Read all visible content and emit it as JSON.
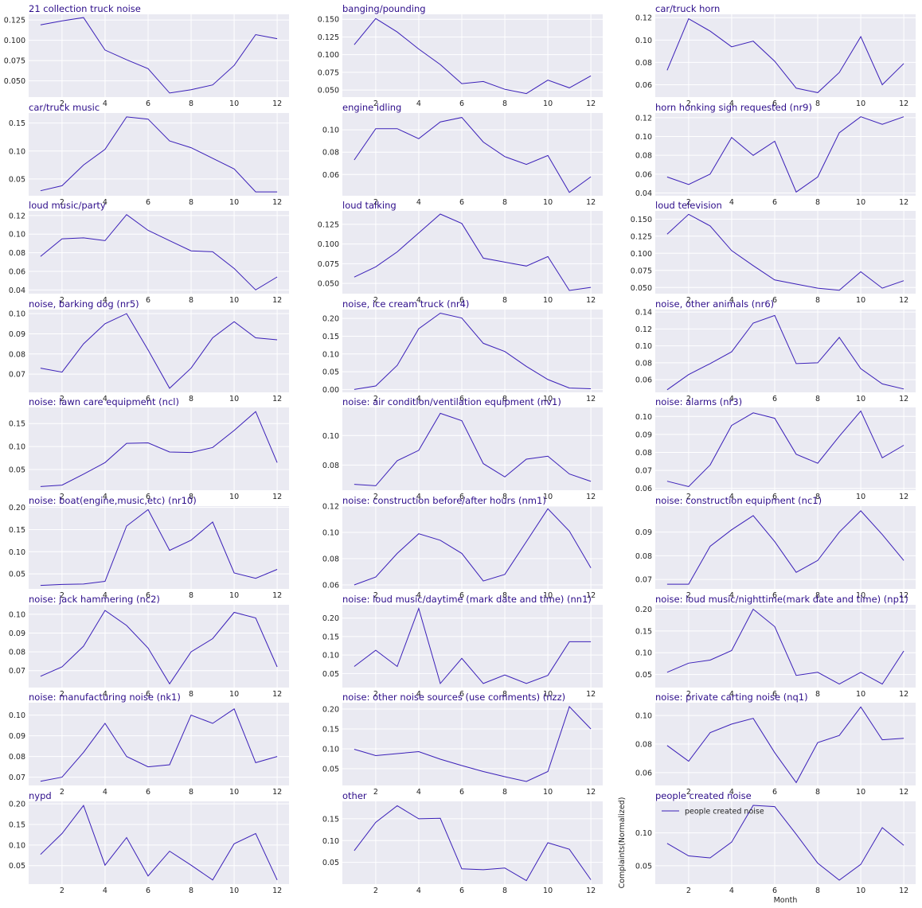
{
  "style": {
    "line_color": "#3a1fb8",
    "title_color": "#2d0d8a",
    "plot_background": "#eaeaf2",
    "grid_color": "#ffffff"
  },
  "chart_data": [
    {
      "type": "line",
      "title": "21 collection truck noise",
      "x": [
        1,
        2,
        3,
        4,
        5,
        6,
        7,
        8,
        9,
        10,
        11,
        12
      ],
      "values": [
        0.119,
        0.124,
        0.128,
        0.088,
        0.076,
        0.065,
        0.035,
        0.039,
        0.045,
        0.069,
        0.107,
        0.102
      ],
      "yticks": [
        "0.050",
        "0.075",
        "0.100",
        "0.125"
      ],
      "ylim": [
        0.03,
        0.132
      ],
      "xticks": [
        2,
        4,
        6,
        8,
        10,
        12
      ]
    },
    {
      "type": "line",
      "title": "banging/pounding",
      "x": [
        1,
        2,
        3,
        4,
        5,
        6,
        7,
        8,
        9,
        10,
        11,
        12
      ],
      "values": [
        0.114,
        0.151,
        0.132,
        0.108,
        0.086,
        0.059,
        0.062,
        0.051,
        0.045,
        0.064,
        0.053,
        0.07
      ],
      "yticks": [
        "0.050",
        "0.075",
        "0.100",
        "0.125",
        "0.150"
      ],
      "ylim": [
        0.04,
        0.157
      ],
      "xticks": [
        2,
        4,
        6,
        8,
        10,
        12
      ]
    },
    {
      "type": "line",
      "title": "car/truck horn",
      "x": [
        1,
        2,
        3,
        4,
        5,
        6,
        7,
        8,
        9,
        10,
        11,
        12
      ],
      "values": [
        0.073,
        0.119,
        0.108,
        0.094,
        0.099,
        0.081,
        0.057,
        0.053,
        0.071,
        0.103,
        0.06,
        0.079
      ],
      "yticks": [
        "0.06",
        "0.08",
        "0.10",
        "0.12"
      ],
      "ylim": [
        0.049,
        0.123
      ],
      "xticks": [
        2,
        4,
        6,
        8,
        10,
        12
      ]
    },
    {
      "type": "line",
      "title": "car/truck music",
      "x": [
        1,
        2,
        3,
        4,
        5,
        6,
        7,
        8,
        9,
        10,
        11,
        12
      ],
      "values": [
        0.029,
        0.038,
        0.075,
        0.103,
        0.161,
        0.157,
        0.118,
        0.106,
        0.087,
        0.068,
        0.027,
        0.027
      ],
      "yticks": [
        "0.05",
        "0.10",
        "0.15"
      ],
      "ylim": [
        0.02,
        0.168
      ],
      "xticks": [
        2,
        4,
        6,
        8,
        10,
        12
      ]
    },
    {
      "type": "line",
      "title": "engine idling",
      "x": [
        1,
        2,
        3,
        4,
        5,
        6,
        7,
        8,
        9,
        10,
        11,
        12
      ],
      "values": [
        0.073,
        0.101,
        0.101,
        0.092,
        0.107,
        0.111,
        0.089,
        0.076,
        0.069,
        0.077,
        0.044,
        0.058
      ],
      "yticks": [
        "0.06",
        "0.08",
        "0.10"
      ],
      "ylim": [
        0.041,
        0.115
      ],
      "xticks": [
        2,
        4,
        6,
        8,
        10,
        12
      ]
    },
    {
      "type": "line",
      "title": "horn honking sign requested (nr9)",
      "x": [
        1,
        2,
        3,
        4,
        5,
        6,
        7,
        8,
        9,
        10,
        11,
        12
      ],
      "values": [
        0.057,
        0.049,
        0.06,
        0.099,
        0.08,
        0.095,
        0.041,
        0.057,
        0.104,
        0.121,
        0.113,
        0.121
      ],
      "yticks": [
        "0.04",
        "0.06",
        "0.08",
        "0.10",
        "0.12"
      ],
      "ylim": [
        0.037,
        0.125
      ],
      "xticks": [
        2,
        4,
        6,
        8,
        10,
        12
      ]
    },
    {
      "type": "line",
      "title": "loud music/party",
      "x": [
        1,
        2,
        3,
        4,
        5,
        6,
        7,
        8,
        9,
        10,
        11,
        12
      ],
      "values": [
        0.076,
        0.095,
        0.096,
        0.093,
        0.121,
        0.104,
        0.093,
        0.082,
        0.081,
        0.063,
        0.04,
        0.054
      ],
      "yticks": [
        "0.04",
        "0.06",
        "0.08",
        "0.10",
        "0.12"
      ],
      "ylim": [
        0.036,
        0.125
      ],
      "xticks": [
        2,
        4,
        6,
        8,
        10,
        12
      ]
    },
    {
      "type": "line",
      "title": "loud talking",
      "x": [
        1,
        2,
        3,
        4,
        5,
        6,
        7,
        8,
        9,
        10,
        11,
        12
      ],
      "values": [
        0.058,
        0.071,
        0.09,
        0.114,
        0.138,
        0.126,
        0.082,
        0.077,
        0.072,
        0.084,
        0.041,
        0.045
      ],
      "yticks": [
        "0.050",
        "0.075",
        "0.100",
        "0.125"
      ],
      "ylim": [
        0.037,
        0.142
      ],
      "xticks": [
        2,
        4,
        6,
        8,
        10,
        12
      ]
    },
    {
      "type": "line",
      "title": "loud television",
      "x": [
        1,
        2,
        3,
        4,
        5,
        6,
        7,
        8,
        9,
        10,
        11,
        12
      ],
      "values": [
        0.128,
        0.157,
        0.14,
        0.104,
        0.082,
        0.061,
        0.055,
        0.049,
        0.046,
        0.073,
        0.049,
        0.06
      ],
      "yticks": [
        "0.050",
        "0.075",
        "0.100",
        "0.125",
        "0.150"
      ],
      "ylim": [
        0.041,
        0.162
      ],
      "xticks": [
        2,
        4,
        6,
        8,
        10,
        12
      ]
    },
    {
      "type": "line",
      "title": "noise, barking dog (nr5)",
      "x": [
        1,
        2,
        3,
        4,
        5,
        6,
        7,
        8,
        9,
        10,
        11,
        12
      ],
      "values": [
        0.073,
        0.071,
        0.085,
        0.095,
        0.1,
        0.082,
        0.063,
        0.073,
        0.088,
        0.096,
        0.088,
        0.087
      ],
      "yticks": [
        "0.07",
        "0.08",
        "0.09",
        "0.10"
      ],
      "ylim": [
        0.061,
        0.102
      ],
      "xticks": [
        2,
        4,
        6,
        8,
        10,
        12
      ]
    },
    {
      "type": "line",
      "title": "noise, ice cream truck (nr4)",
      "x": [
        1,
        2,
        3,
        4,
        5,
        6,
        7,
        8,
        9,
        10,
        11,
        12
      ],
      "values": [
        0.0,
        0.01,
        0.068,
        0.171,
        0.215,
        0.201,
        0.13,
        0.107,
        0.065,
        0.028,
        0.004,
        0.002
      ],
      "yticks": [
        "0.00",
        "0.05",
        "0.10",
        "0.15",
        "0.20"
      ],
      "ylim": [
        -0.008,
        0.225
      ],
      "xticks": [
        2,
        4,
        6,
        8,
        10,
        12
      ]
    },
    {
      "type": "line",
      "title": "noise, other animals (nr6)",
      "x": [
        1,
        2,
        3,
        4,
        5,
        6,
        7,
        8,
        9,
        10,
        11,
        12
      ],
      "values": [
        0.048,
        0.066,
        0.079,
        0.093,
        0.127,
        0.136,
        0.079,
        0.08,
        0.11,
        0.073,
        0.055,
        0.049
      ],
      "yticks": [
        "0.06",
        "0.08",
        "0.10",
        "0.12",
        "0.14"
      ],
      "ylim": [
        0.045,
        0.143
      ],
      "xticks": [
        2,
        4,
        6,
        8,
        10,
        12
      ]
    },
    {
      "type": "line",
      "title": "noise:  lawn care equipment (ncl)",
      "x": [
        1,
        2,
        3,
        4,
        5,
        6,
        7,
        8,
        9,
        10,
        11,
        12
      ],
      "values": [
        0.013,
        0.016,
        0.04,
        0.065,
        0.107,
        0.108,
        0.088,
        0.087,
        0.098,
        0.135,
        0.176,
        0.065
      ],
      "yticks": [
        "0.05",
        "0.10",
        "0.15"
      ],
      "ylim": [
        0.005,
        0.185
      ],
      "xticks": [
        2,
        4,
        6,
        8,
        10,
        12
      ]
    },
    {
      "type": "line",
      "title": "noise: air condition/ventilation equipment (nv1)",
      "x": [
        1,
        2,
        3,
        4,
        5,
        6,
        7,
        8,
        9,
        10,
        11,
        12
      ],
      "values": [
        0.067,
        0.066,
        0.083,
        0.09,
        0.115,
        0.11,
        0.081,
        0.072,
        0.084,
        0.086,
        0.074,
        0.069
      ],
      "yticks": [
        "0.08",
        "0.10"
      ],
      "ylim": [
        0.063,
        0.119
      ],
      "xticks": [
        2,
        4,
        6,
        8,
        10,
        12
      ]
    },
    {
      "type": "line",
      "title": "noise: alarms (nr3)",
      "x": [
        1,
        2,
        3,
        4,
        5,
        6,
        7,
        8,
        9,
        10,
        11,
        12
      ],
      "values": [
        0.064,
        0.061,
        0.073,
        0.095,
        0.102,
        0.099,
        0.079,
        0.074,
        0.089,
        0.103,
        0.077,
        0.084
      ],
      "yticks": [
        "0.06",
        "0.07",
        "0.08",
        "0.09",
        "0.10"
      ],
      "ylim": [
        0.059,
        0.105
      ],
      "xticks": [
        2,
        4,
        6,
        8,
        10,
        12
      ]
    },
    {
      "type": "line",
      "title": "noise: boat(engine,music,etc) (nr10)",
      "x": [
        1,
        2,
        3,
        4,
        5,
        6,
        7,
        8,
        9,
        10,
        11,
        12
      ],
      "values": [
        0.024,
        0.026,
        0.027,
        0.033,
        0.158,
        0.195,
        0.103,
        0.126,
        0.167,
        0.052,
        0.04,
        0.06
      ],
      "yticks": [
        "0.05",
        "0.10",
        "0.15",
        "0.20"
      ],
      "ylim": [
        0.016,
        0.203
      ],
      "xticks": [
        2,
        4,
        6,
        8,
        10,
        12
      ]
    },
    {
      "type": "line",
      "title": "noise: construction before/after hours (nm1)",
      "x": [
        1,
        2,
        3,
        4,
        5,
        6,
        7,
        8,
        9,
        10,
        11,
        12
      ],
      "values": [
        0.06,
        0.066,
        0.084,
        0.099,
        0.094,
        0.084,
        0.063,
        0.068,
        0.093,
        0.118,
        0.101,
        0.073
      ],
      "yticks": [
        "0.06",
        "0.08",
        "0.10",
        "0.12"
      ],
      "ylim": [
        0.057,
        0.12
      ],
      "xticks": [
        2,
        4,
        6,
        8,
        10,
        12
      ]
    },
    {
      "type": "line",
      "title": "noise: construction equipment (nc1)",
      "x": [
        1,
        2,
        3,
        4,
        5,
        6,
        7,
        8,
        9,
        10,
        11,
        12
      ],
      "values": [
        0.068,
        0.068,
        0.084,
        0.091,
        0.097,
        0.086,
        0.073,
        0.078,
        0.09,
        0.099,
        0.089,
        0.078
      ],
      "yticks": [
        "0.07",
        "0.08",
        "0.09"
      ],
      "ylim": [
        0.066,
        0.101
      ],
      "xticks": [
        2,
        4,
        6,
        8,
        10,
        12
      ]
    },
    {
      "type": "line",
      "title": "noise: jack hammering (nc2)",
      "x": [
        1,
        2,
        3,
        4,
        5,
        6,
        7,
        8,
        9,
        10,
        11,
        12
      ],
      "values": [
        0.067,
        0.072,
        0.083,
        0.102,
        0.094,
        0.082,
        0.063,
        0.08,
        0.087,
        0.101,
        0.098,
        0.072
      ],
      "yticks": [
        "0.07",
        "0.08",
        "0.09",
        "0.10"
      ],
      "ylim": [
        0.061,
        0.105
      ],
      "xticks": [
        2,
        4,
        6,
        8,
        10,
        12
      ]
    },
    {
      "type": "line",
      "title": "noise: loud music/daytime (mark date and time) (nn1)",
      "x": [
        1,
        2,
        3,
        4,
        5,
        6,
        7,
        8,
        9,
        10,
        11,
        12
      ],
      "values": [
        0.069,
        0.113,
        0.069,
        0.226,
        0.023,
        0.091,
        0.023,
        0.046,
        0.023,
        0.045,
        0.136,
        0.136
      ],
      "yticks": [
        "0.05",
        "0.10",
        "0.15",
        "0.20"
      ],
      "ylim": [
        0.012,
        0.236
      ],
      "xticks": [
        2,
        4,
        6,
        8,
        10,
        12
      ]
    },
    {
      "type": "line",
      "title": "noise: loud music/nighttime(mark date and time) (np1)",
      "x": [
        1,
        2,
        3,
        4,
        5,
        6,
        7,
        8,
        9,
        10,
        11,
        12
      ],
      "values": [
        0.055,
        0.076,
        0.083,
        0.105,
        0.2,
        0.16,
        0.048,
        0.055,
        0.028,
        0.055,
        0.028,
        0.104
      ],
      "yticks": [
        "0.05",
        "0.10",
        "0.15",
        "0.20"
      ],
      "ylim": [
        0.02,
        0.21
      ],
      "xticks": [
        2,
        4,
        6,
        8,
        10,
        12
      ]
    },
    {
      "type": "line",
      "title": "noise: manufacturing noise (nk1)",
      "x": [
        1,
        2,
        3,
        4,
        5,
        6,
        7,
        8,
        9,
        10,
        11,
        12
      ],
      "values": [
        0.068,
        0.07,
        0.082,
        0.096,
        0.08,
        0.075,
        0.076,
        0.1,
        0.096,
        0.103,
        0.077,
        0.08
      ],
      "yticks": [
        "0.07",
        "0.08",
        "0.09",
        "0.10"
      ],
      "ylim": [
        0.066,
        0.106
      ],
      "xticks": [
        2,
        4,
        6,
        8,
        10,
        12
      ]
    },
    {
      "type": "line",
      "title": "noise: other noise sources (use comments) (nzz)",
      "x": [
        1,
        2,
        3,
        4,
        5,
        6,
        7,
        8,
        9,
        10,
        11,
        12
      ],
      "values": [
        0.099,
        0.083,
        0.088,
        0.093,
        0.074,
        0.058,
        0.043,
        0.03,
        0.018,
        0.043,
        0.206,
        0.15
      ],
      "yticks": [
        "0.05",
        "0.10",
        "0.15",
        "0.20"
      ],
      "ylim": [
        0.008,
        0.216
      ],
      "xticks": [
        2,
        4,
        6,
        8,
        10,
        12
      ]
    },
    {
      "type": "line",
      "title": "noise: private carting noise (nq1)",
      "x": [
        1,
        2,
        3,
        4,
        5,
        6,
        7,
        8,
        9,
        10,
        11,
        12
      ],
      "values": [
        0.079,
        0.068,
        0.088,
        0.094,
        0.098,
        0.074,
        0.053,
        0.081,
        0.086,
        0.106,
        0.083,
        0.084
      ],
      "yticks": [
        "0.06",
        "0.08",
        "0.10"
      ],
      "ylim": [
        0.051,
        0.109
      ],
      "xticks": [
        2,
        4,
        6,
        8,
        10,
        12
      ]
    },
    {
      "type": "line",
      "title": "nypd",
      "x": [
        1,
        2,
        3,
        4,
        5,
        6,
        7,
        8,
        9,
        10,
        11,
        12
      ],
      "values": [
        0.077,
        0.128,
        0.196,
        0.051,
        0.118,
        0.025,
        0.085,
        0.051,
        0.015,
        0.103,
        0.128,
        0.015
      ],
      "yticks": [
        "0.05",
        "0.10",
        "0.15",
        "0.20"
      ],
      "ylim": [
        0.005,
        0.206
      ],
      "xticks": [
        2,
        4,
        6,
        8,
        10,
        12
      ]
    },
    {
      "type": "line",
      "title": "other",
      "x": [
        1,
        2,
        3,
        4,
        5,
        6,
        7,
        8,
        9,
        10,
        11,
        12
      ],
      "values": [
        0.077,
        0.142,
        0.18,
        0.15,
        0.151,
        0.035,
        0.033,
        0.037,
        0.008,
        0.095,
        0.08,
        0.01
      ],
      "yticks": [
        "0.05",
        "0.10",
        "0.15"
      ],
      "ylim": [
        0.0,
        0.19
      ],
      "xticks": [
        2,
        4,
        6,
        8,
        10,
        12
      ]
    },
    {
      "type": "line",
      "title": "people created noise",
      "x": [
        1,
        2,
        3,
        4,
        5,
        6,
        7,
        8,
        9,
        10,
        11,
        12
      ],
      "values": [
        0.084,
        0.065,
        0.062,
        0.086,
        0.142,
        0.14,
        0.098,
        0.054,
        0.028,
        0.052,
        0.108,
        0.081
      ],
      "yticks": [
        "0.05",
        "0.10"
      ],
      "ylim": [
        0.022,
        0.148
      ],
      "xticks": [
        2,
        4,
        6,
        8,
        10,
        12
      ],
      "xlabel": "Month",
      "ylabel": "Complaints(Normalized)",
      "legend": {
        "entries": [
          "people created noise"
        ],
        "position": "upper-left"
      }
    }
  ]
}
